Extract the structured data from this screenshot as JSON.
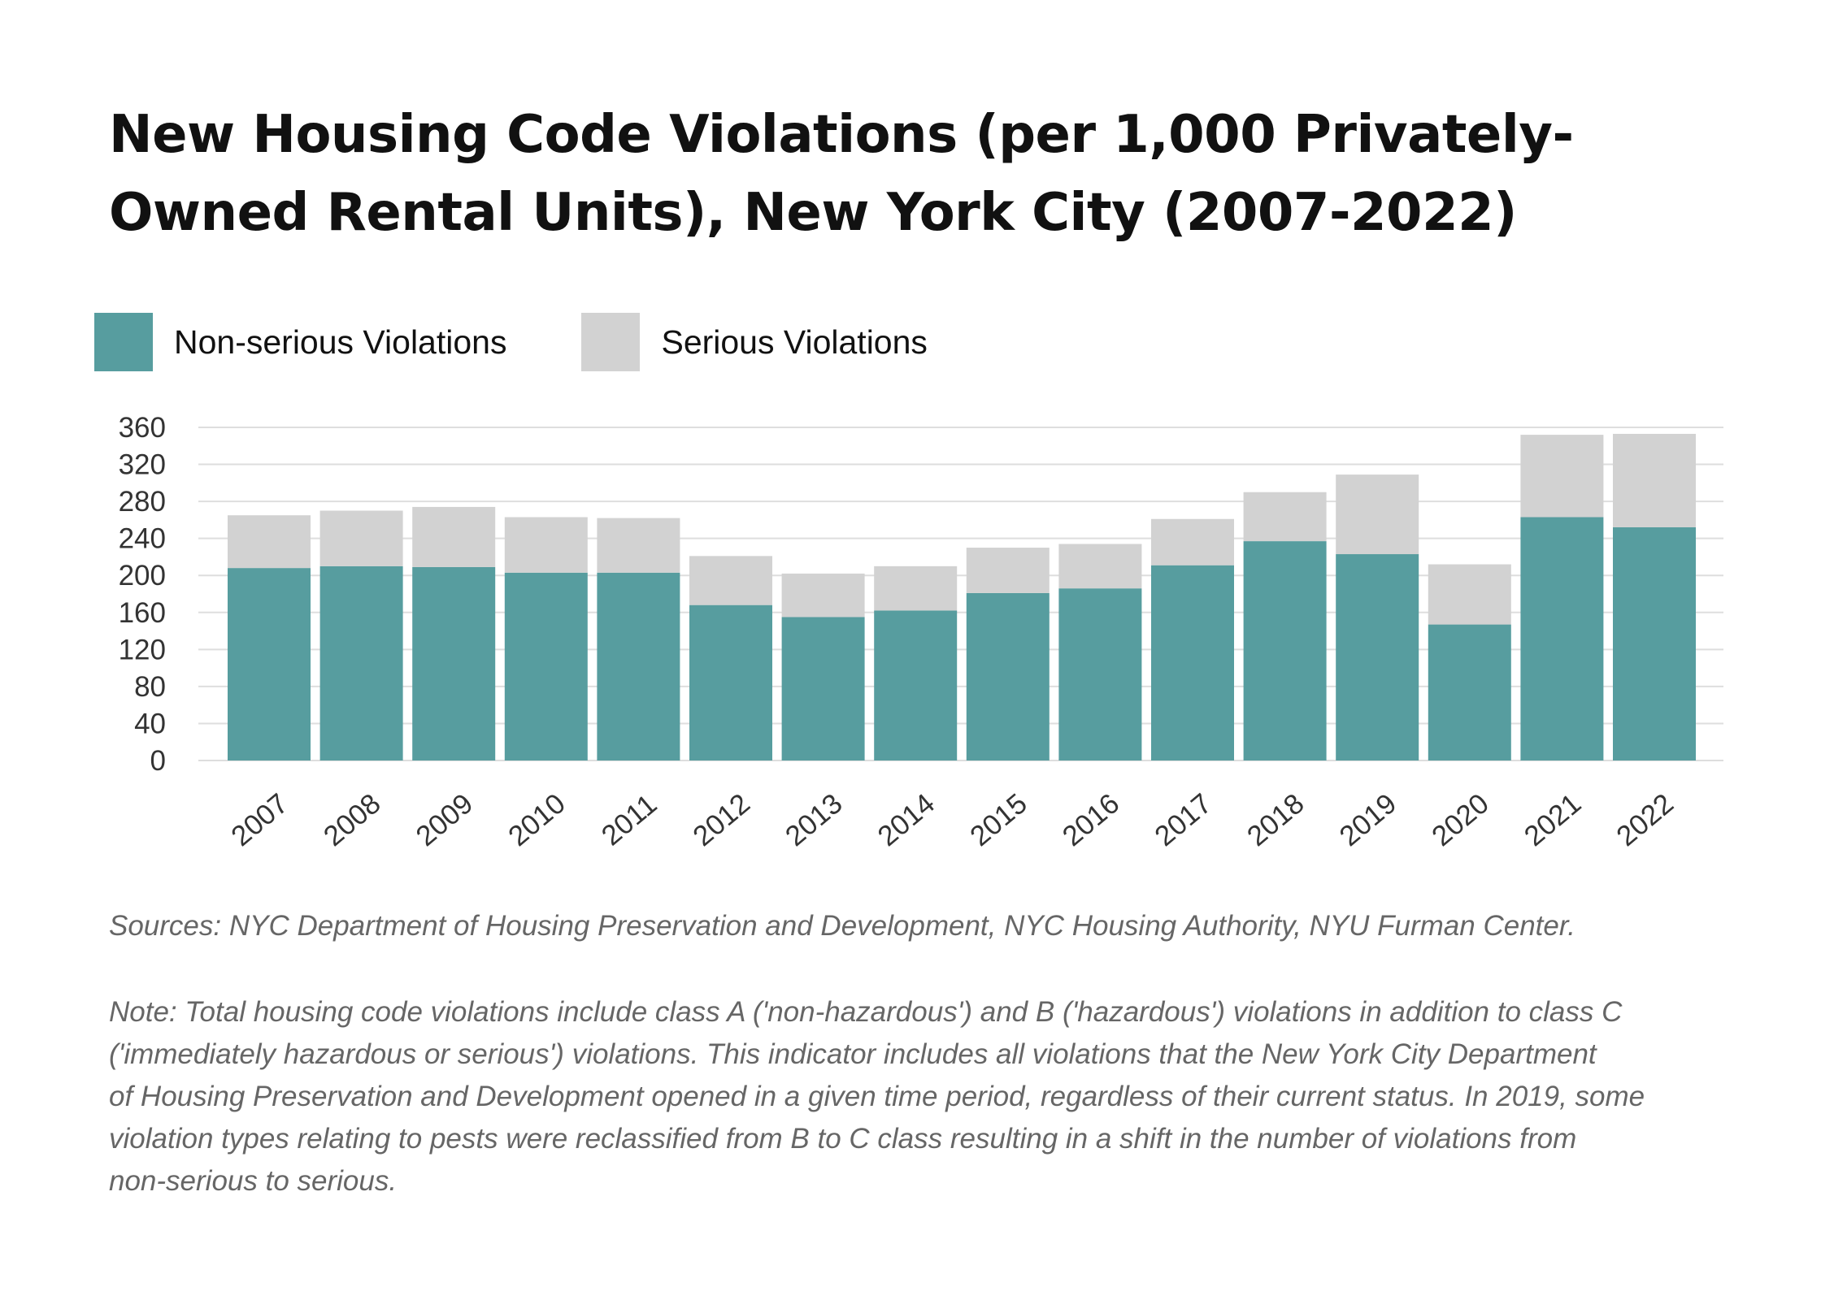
{
  "title": "New Housing Code Violations (per 1,000 Privately-Owned Rental Units), New York City (2007-2022)",
  "legend": [
    {
      "label": "Non-serious Violations",
      "color": "#579d9f"
    },
    {
      "label": "Serious Violations",
      "color": "#d2d2d2"
    }
  ],
  "chart_data": {
    "type": "bar",
    "stacked": true,
    "title": "New Housing Code Violations (per 1,000 Privately-Owned Rental Units), New York City (2007-2022)",
    "categories": [
      "2007",
      "2008",
      "2009",
      "2010",
      "2011",
      "2012",
      "2013",
      "2014",
      "2015",
      "2016",
      "2017",
      "2018",
      "2019",
      "2020",
      "2021",
      "2022"
    ],
    "series": [
      {
        "name": "Non-serious Violations",
        "color": "#579d9f",
        "values": [
          208,
          210,
          209,
          203,
          203,
          168,
          155,
          162,
          181,
          186,
          211,
          237,
          223,
          147,
          263,
          252
        ]
      },
      {
        "name": "Serious Violations",
        "color": "#d2d2d2",
        "values": [
          57,
          60,
          65,
          60,
          59,
          53,
          47,
          48,
          49,
          48,
          50,
          53,
          86,
          65,
          89,
          101
        ]
      }
    ],
    "yticks": [
      "0",
      "40",
      "80",
      "120",
      "160",
      "200",
      "240",
      "280",
      "320",
      "360"
    ],
    "ylim": [
      0,
      360
    ],
    "grid": true,
    "legend_position": "top-left",
    "xlabel": "",
    "ylabel": ""
  },
  "sources": "Sources: NYC Department of Housing Preservation and Development, NYC Housing Authority, NYU Furman Center.",
  "note_lines": [
    "Note: Total housing code violations include class A ('non-hazardous') and B ('hazardous') violations in addition to class C",
    "('immediately hazardous or serious') violations. This indicator includes all violations that the New York City Department",
    "of Housing Preservation and Development opened in a given time period, regardless of their current status. In 2019, some",
    "violation types relating to pests were reclassified from B to C class resulting in a shift in the number of violations from",
    "non-serious to serious."
  ]
}
